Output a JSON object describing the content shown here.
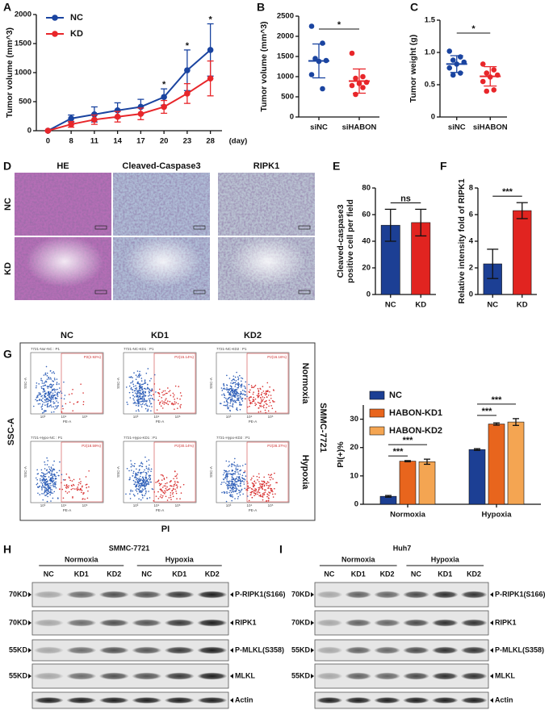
{
  "panel_labels": [
    "A",
    "B",
    "C",
    "D",
    "E",
    "F",
    "G",
    "H",
    "I"
  ],
  "chart_data": [
    {
      "type": "line",
      "ylabel": "Tumor volume (mm^3)",
      "xlabel": "(day)",
      "categories": [
        "0",
        "8",
        "11",
        "14",
        "17",
        "20",
        "23",
        "28"
      ],
      "ylim": [
        0,
        2000
      ],
      "yticks": [
        0,
        500,
        1000,
        1500,
        2000
      ],
      "legend": "top-left",
      "series": [
        {
          "name": "NC",
          "color": "#1a44a0",
          "values": [
            0,
            210,
            280,
            350,
            410,
            580,
            1040,
            1390
          ],
          "errors": [
            0,
            60,
            130,
            130,
            130,
            140,
            350,
            450
          ]
        },
        {
          "name": "KD",
          "color": "#e8262a",
          "values": [
            0,
            110,
            190,
            240,
            290,
            410,
            640,
            900
          ],
          "errors": [
            0,
            50,
            80,
            90,
            100,
            110,
            170,
            300
          ]
        }
      ],
      "significance": [
        null,
        null,
        null,
        null,
        null,
        "*",
        "*",
        "*"
      ]
    },
    {
      "type": "dotplot",
      "ylabel": "Tumor volume (mm^3)",
      "ylim": [
        0,
        2500
      ],
      "yticks": [
        0,
        500,
        1000,
        1500,
        2000,
        2500
      ],
      "significance": "*",
      "groups": [
        {
          "name": "siNC",
          "color": "#1a44a0",
          "points": [
            2250,
            1830,
            1450,
            1400,
            1380,
            1050,
            700
          ],
          "mean": 1390,
          "sd": 420
        },
        {
          "name": "siHABON",
          "color": "#e8262a",
          "points": [
            1580,
            1000,
            960,
            860,
            830,
            780,
            730,
            560
          ],
          "mean": 890,
          "sd": 300
        }
      ]
    },
    {
      "type": "dotplot",
      "ylabel": "Tumor weight (g)",
      "ylim": [
        0,
        1.5
      ],
      "yticks": [
        0,
        0.5,
        {
          "value": 1,
          "label": "1.0"
        },
        1.5
      ],
      "significance": "*",
      "groups": [
        {
          "name": "siNC",
          "color": "#1a44a0",
          "points": [
            1.02,
            0.93,
            0.88,
            0.85,
            0.82,
            0.76,
            0.68,
            0.65
          ],
          "mean": 0.82,
          "sd": 0.13
        },
        {
          "name": "siHABON",
          "color": "#e8262a",
          "points": [
            0.82,
            0.73,
            0.68,
            0.65,
            0.62,
            0.55,
            0.42,
            0.4
          ],
          "mean": 0.63,
          "sd": 0.15
        }
      ]
    },
    {
      "type": "bar",
      "ylabel": [
        "Cleaved-caspase3",
        "positive cell per field"
      ],
      "categories": [
        "NC",
        "KD"
      ],
      "values": [
        52,
        54
      ],
      "errors": [
        12,
        10
      ],
      "colors": [
        "#1c3f94",
        "#e12420"
      ],
      "ylim": [
        0,
        80
      ],
      "yticks": [
        0,
        20,
        40,
        60,
        80
      ],
      "significance": "ns"
    },
    {
      "type": "bar",
      "ylabel": "Relative intensity fold of RIPK1",
      "categories": [
        "NC",
        "KD"
      ],
      "values": [
        2.3,
        6.3
      ],
      "errors": [
        1.1,
        0.6
      ],
      "colors": [
        "#1c3f94",
        "#e12420"
      ],
      "ylim": [
        0,
        8
      ],
      "yticks": [
        0,
        2,
        4,
        6,
        8
      ],
      "significance": "***"
    },
    {
      "type": "bar",
      "ylabel": "PI(+)%",
      "categories": [
        "Normoxia",
        "Hypoxia"
      ],
      "legend": "top-left",
      "ylim": [
        0,
        35
      ],
      "yticks": [
        0,
        10,
        20,
        30
      ],
      "series": [
        {
          "name": "NC",
          "color": "#1c3f94",
          "values": [
            2.8,
            19.3
          ],
          "errors": [
            0.3,
            0.3
          ]
        },
        {
          "name": "HABON-KD1",
          "color": "#e8651d",
          "values": [
            15.2,
            28.3
          ],
          "errors": [
            0.2,
            0.4
          ]
        },
        {
          "name": "HABON-KD2",
          "color": "#f4a552",
          "values": [
            15.0,
            29.0
          ],
          "errors": [
            0.9,
            1.2
          ]
        }
      ],
      "significance": [
        "***",
        "***",
        "***",
        "***"
      ]
    }
  ],
  "ihc": {
    "columns": [
      "HE",
      "Cleaved-Caspase3",
      "RIPK1"
    ],
    "rows": [
      "NC",
      "KD"
    ]
  },
  "flow": {
    "columns": [
      "NC",
      "KD1",
      "KD2"
    ],
    "rows": [
      "Normoxia",
      "Hypoxia"
    ],
    "cell_line": "SMMC-7721",
    "ylabel": "SSC-A",
    "xlabel": "PI",
    "inner_ylabel": "SSC-A",
    "inner_xlabel": "PE-A",
    "inner_xticks": [
      "10³",
      "10⁴",
      "10⁵"
    ],
    "plots": [
      [
        {
          "title": "7721-Nor-NC : P1",
          "gate": "P2(2.92%)"
        },
        {
          "title": "7721-NC-KD1 : P1",
          "gate": "P2(15.14%)"
        },
        {
          "title": "7721-NC-KD2 : P1",
          "gate": "P2(16.16%)"
        }
      ],
      [
        {
          "title": "7721-Hypo-NC : P1",
          "gate": "P2(18.59%)"
        },
        {
          "title": "7721-Hypo-KD1 : P1",
          "gate": "P2(30.14%)"
        },
        {
          "title": "7721-Hypo-KD2 : P1",
          "gate": "P2(28.37%)"
        }
      ]
    ]
  },
  "blots": [
    {
      "title": "SMMC-7721",
      "groups": [
        "Normoxia",
        "Hypoxia"
      ],
      "lanes": [
        "NC",
        "KD1",
        "KD2",
        "NC",
        "KD1",
        "KD2"
      ],
      "rows": [
        {
          "marker": "70KD",
          "protein": "P-RIPK1(S166)"
        },
        {
          "marker": "70KD",
          "protein": "RIPK1"
        },
        {
          "marker": "55KD",
          "protein": "P-MLKL(S358)"
        },
        {
          "marker": "55KD",
          "protein": "MLKL"
        },
        {
          "protein": "Actin"
        }
      ]
    },
    {
      "title": "Huh7",
      "groups": [
        "Normoxia",
        "Hypoxia"
      ],
      "lanes": [
        "NC",
        "KD1",
        "KD2",
        "NC",
        "KD1",
        "KD2"
      ],
      "rows": [
        {
          "marker": "70KD",
          "protein": "P-RIPK1(S166)"
        },
        {
          "marker": "70KD",
          "protein": "RIPK1"
        },
        {
          "marker": "55KD",
          "protein": "P-MLKL(S358)"
        },
        {
          "marker": "55KD",
          "protein": "MLKL"
        },
        {
          "protein": "Actin"
        }
      ]
    }
  ]
}
